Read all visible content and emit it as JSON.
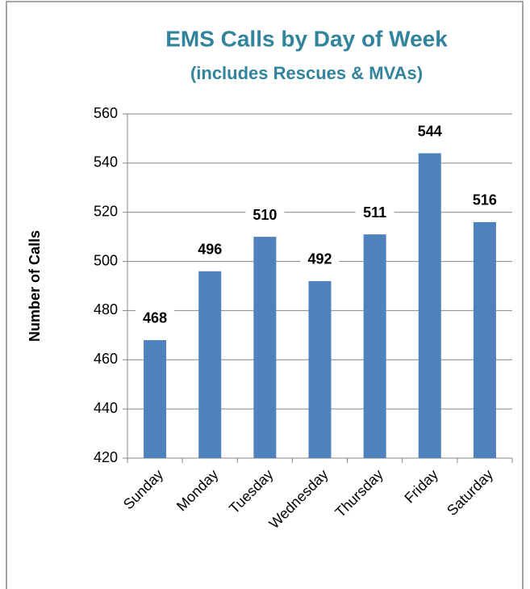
{
  "chart_data": {
    "type": "bar",
    "title": "EMS Calls by Day of Week",
    "subtitle": "(includes Rescues & MVAs)",
    "y_label": "Number of Calls",
    "categories": [
      "Sunday",
      "Monday",
      "Tuesday",
      "Wednesday",
      "Thursday",
      "Friday",
      "Saturday"
    ],
    "values": [
      468,
      496,
      510,
      492,
      511,
      544,
      516
    ],
    "color": "#4f81bd",
    "ylim": [
      420,
      560
    ],
    "yticks": [
      420,
      440,
      460,
      480,
      500,
      520,
      540,
      560
    ],
    "grid": true
  }
}
